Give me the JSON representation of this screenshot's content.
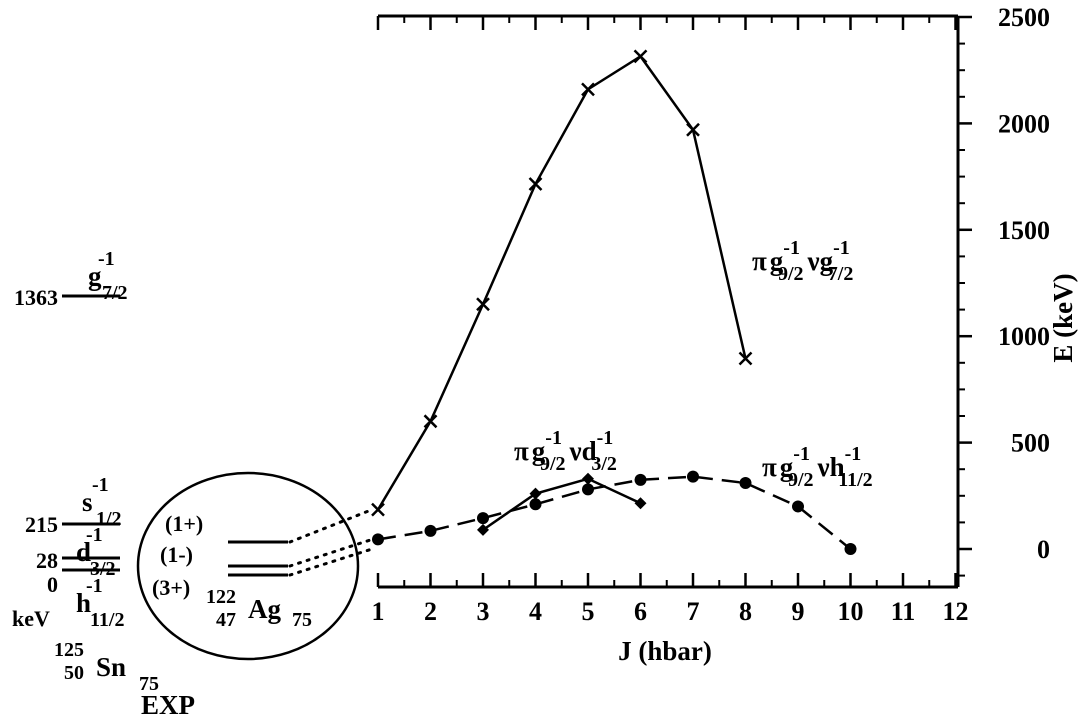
{
  "chart_data": {
    "type": "line",
    "xlabel": "J (hbar)",
    "ylabel": "E (keV)",
    "xlim": [
      0.8,
      12
    ],
    "ylim": [
      -250,
      2500
    ],
    "x_ticks": [
      "1",
      "2",
      "3",
      "4",
      "5",
      "6",
      "7",
      "8",
      "9",
      "10",
      "11",
      "12"
    ],
    "y_ticks": [
      "0",
      "500",
      "1000",
      "1500",
      "2000",
      "2500"
    ],
    "y_axis_side": "right",
    "grid": false,
    "series": [
      {
        "key": "g_g",
        "label": {
          "pi": "π",
          "l1": "g",
          "s1": "-1",
          "b1": "9/2",
          "nu": "ν",
          "l2": "g",
          "s2": "-1",
          "b2": "7/2"
        },
        "style": "solid",
        "marker": "x",
        "color": "#000000",
        "x": [
          1,
          2,
          3,
          4,
          5,
          6,
          7,
          8
        ],
        "y": [
          185,
          600,
          1150,
          1715,
          2160,
          2315,
          1970,
          895
        ]
      },
      {
        "key": "g_d",
        "label": {
          "pi": "π",
          "l1": "g",
          "s1": "-1",
          "b1": "9/2",
          "nu": "ν",
          "l2": "d",
          "s2": "-1",
          "b2": "3/2"
        },
        "style": "solid",
        "marker": "diamond",
        "color": "#000000",
        "x": [
          3,
          4,
          5,
          6
        ],
        "y": [
          90,
          260,
          330,
          215
        ]
      },
      {
        "key": "g_h",
        "label": {
          "pi": "π",
          "l1": "g",
          "s1": "-1",
          "b1": "9/2",
          "nu": "ν",
          "l2": "h",
          "s2": "-1",
          "b2": "11/2"
        },
        "style": "dashed",
        "marker": "circle",
        "color": "#000000",
        "x": [
          1,
          2,
          3,
          4,
          5,
          6,
          7,
          8,
          9,
          10
        ],
        "y": [
          45,
          85,
          145,
          210,
          280,
          325,
          340,
          310,
          200,
          0
        ]
      }
    ],
    "sn_levels": {
      "unit": "keV",
      "items": [
        {
          "energy": "1363",
          "orb": "g",
          "sup": "-1",
          "sub": "7/2"
        },
        {
          "energy": "215",
          "orb": "s",
          "sup": "-1",
          "sub": "1/2"
        },
        {
          "energy": "28",
          "orb": "d",
          "sup": "-1",
          "sub": "3/2"
        },
        {
          "energy": "0",
          "orb": "h",
          "sup": "-1",
          "sub": "11/2"
        }
      ],
      "nucleus": {
        "mass": "125",
        "z": "50",
        "symbol": "Sn",
        "n": "75"
      },
      "caption": "EXP"
    },
    "ag_levels": {
      "spins": [
        "(1+)",
        "(1-)",
        "(3+)"
      ],
      "nucleus": {
        "mass": "122",
        "z": "47",
        "symbol": "Ag",
        "n": "75"
      }
    }
  }
}
